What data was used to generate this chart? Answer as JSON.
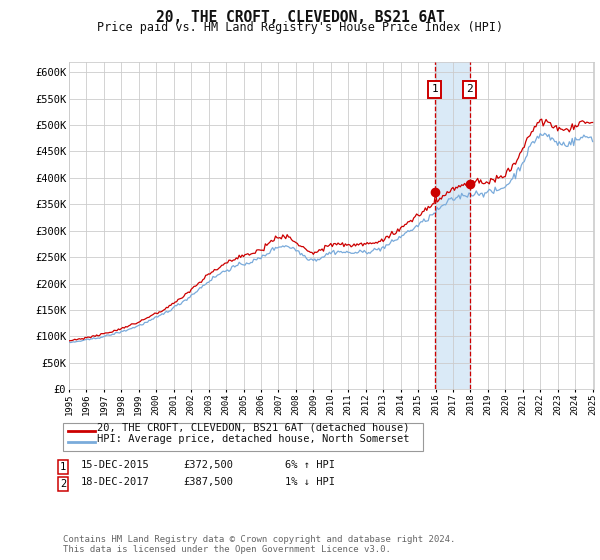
{
  "title": "20, THE CROFT, CLEVEDON, BS21 6AT",
  "subtitle": "Price paid vs. HM Land Registry's House Price Index (HPI)",
  "ylim": [
    0,
    620000
  ],
  "yticks": [
    0,
    50000,
    100000,
    150000,
    200000,
    250000,
    300000,
    350000,
    400000,
    450000,
    500000,
    550000,
    600000
  ],
  "ytick_labels": [
    "£0",
    "£50K",
    "£100K",
    "£150K",
    "£200K",
    "£250K",
    "£300K",
    "£350K",
    "£400K",
    "£450K",
    "£500K",
    "£550K",
    "£600K"
  ],
  "x_start_year": 1995,
  "x_end_year": 2025,
  "transaction1": {
    "date": "15-DEC-2015",
    "price": 372500,
    "year": 2015.96,
    "label": "1",
    "pct": "6%",
    "dir": "↑"
  },
  "transaction2": {
    "date": "18-DEC-2017",
    "price": 387500,
    "year": 2017.96,
    "label": "2",
    "pct": "1%",
    "dir": "↓"
  },
  "legend_line1": "20, THE CROFT, CLEVEDON, BS21 6AT (detached house)",
  "legend_line2": "HPI: Average price, detached house, North Somerset",
  "footnote": "Contains HM Land Registry data © Crown copyright and database right 2024.\nThis data is licensed under the Open Government Licence v3.0.",
  "line_color_red": "#cc0000",
  "line_color_blue": "#7aabdb",
  "shade_color": "#daeaf7",
  "grid_color": "#cccccc",
  "background_color": "#ffffff"
}
